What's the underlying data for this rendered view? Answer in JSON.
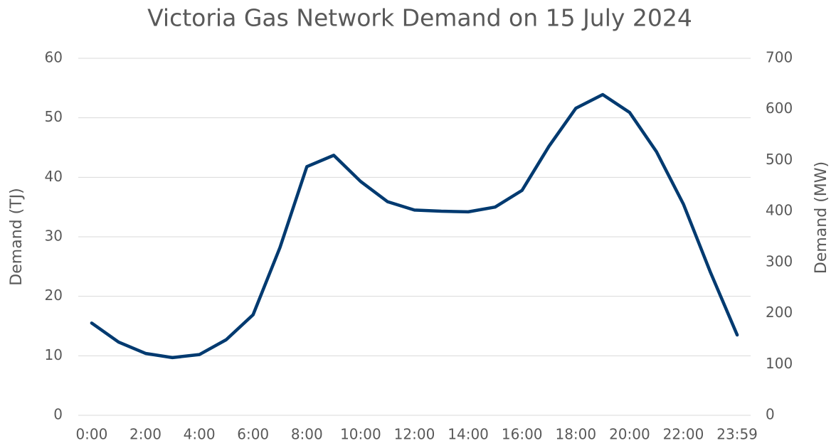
{
  "chart_data": {
    "type": "line",
    "title": "Victoria Gas Network Demand on 15 July 2024",
    "y_label": "Demand (TJ)",
    "y2_label": "Demand (MW)",
    "categories": [
      "0:00",
      null,
      "2:00",
      null,
      "4:00",
      null,
      "6:00",
      null,
      "8:00",
      null,
      "10:00",
      null,
      "12:00",
      null,
      "14:00",
      null,
      "16:00",
      null,
      "18:00",
      null,
      "20:00",
      null,
      "22:00",
      null,
      "23:59"
    ],
    "values": [
      15.5,
      12.3,
      10.4,
      9.7,
      10.2,
      12.7,
      16.9,
      28.2,
      41.8,
      43.7,
      39.3,
      35.9,
      34.5,
      34.3,
      34.2,
      35.0,
      37.8,
      45.2,
      51.6,
      53.9,
      50.9,
      44.3,
      35.5,
      24.1,
      13.5
    ],
    "color": "#003a70",
    "ylim": [
      0,
      60
    ],
    "yticks": [
      0,
      10,
      20,
      30,
      40,
      50,
      60
    ],
    "y2lim": [
      0,
      700
    ],
    "y2ticks": [
      0,
      100,
      200,
      300,
      400,
      500,
      600,
      700
    ],
    "grid": true
  }
}
